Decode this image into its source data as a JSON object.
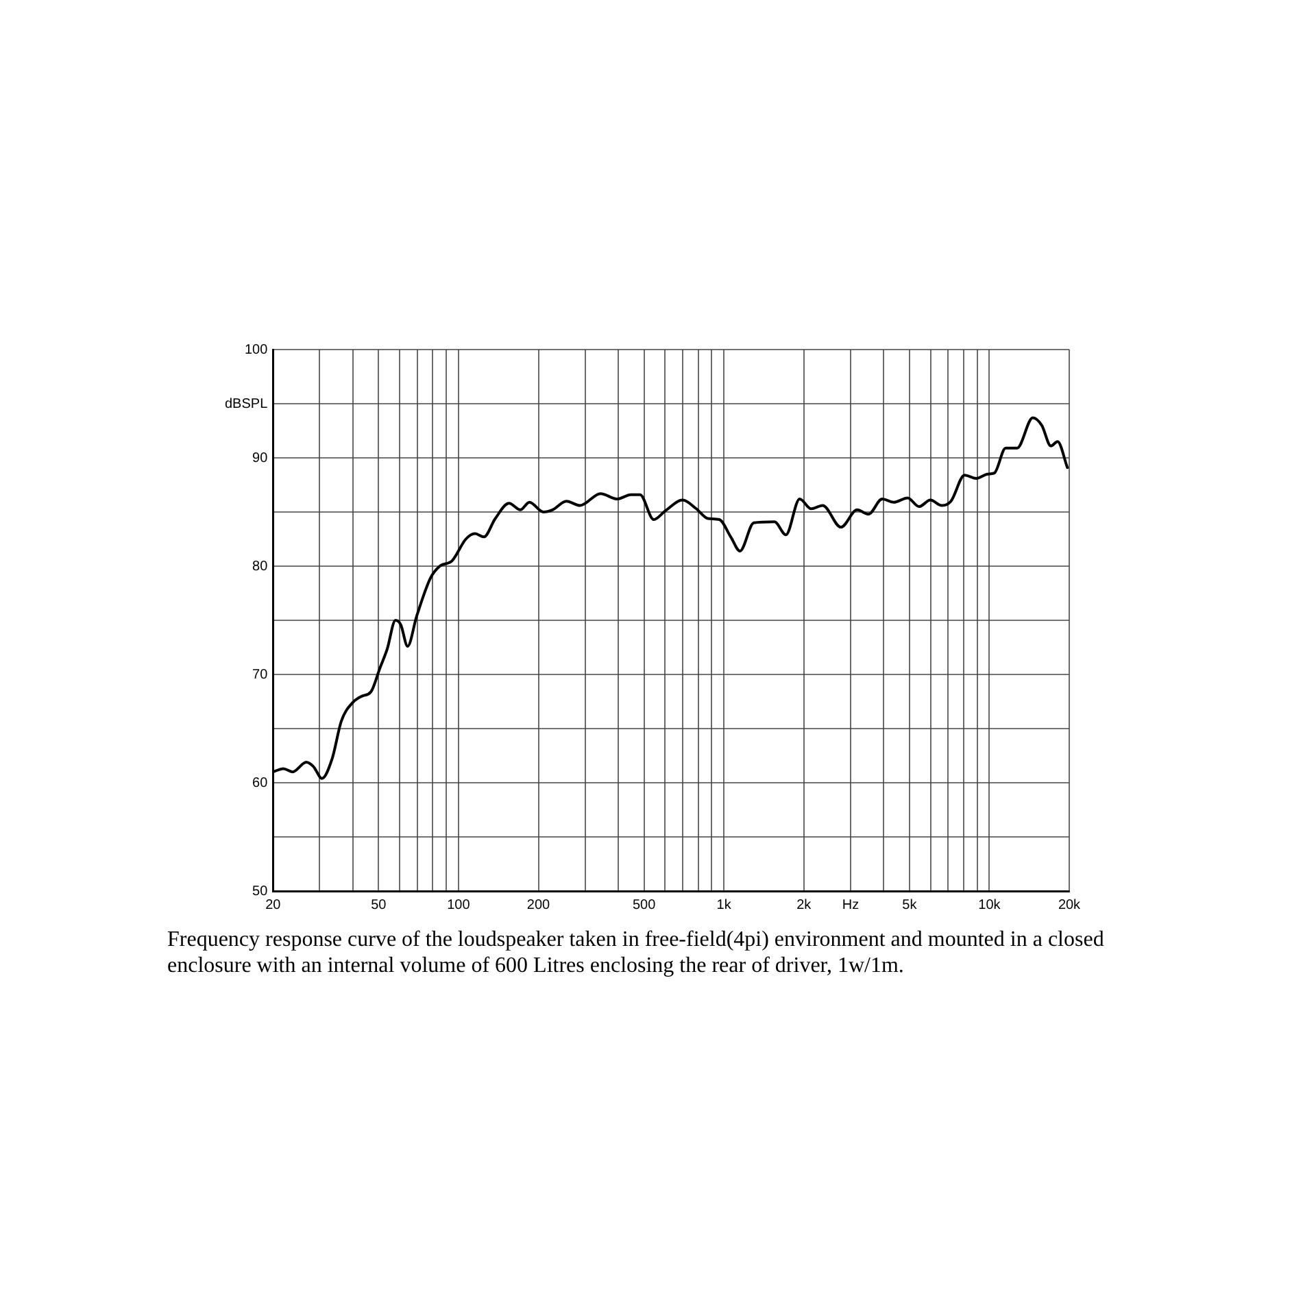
{
  "chart_data": {
    "type": "line",
    "log": "x",
    "grid": true,
    "legend": false,
    "marker": "none",
    "line_style": "solid",
    "xlim": [
      20,
      20000
    ],
    "ylim": [
      50,
      100
    ],
    "xticks": [
      20,
      {
        "value": 30,
        "label": null
      },
      {
        "value": 40,
        "label": null
      },
      50,
      {
        "value": 60,
        "label": null
      },
      {
        "value": 70,
        "label": null
      },
      {
        "value": 80,
        "label": null
      },
      {
        "value": 90,
        "label": null
      },
      100,
      200,
      {
        "value": 300,
        "label": null
      },
      {
        "value": 400,
        "label": null
      },
      500,
      {
        "value": 600,
        "label": null
      },
      {
        "value": 700,
        "label": null
      },
      {
        "value": 800,
        "label": null
      },
      {
        "value": 900,
        "label": null
      },
      {
        "value": 1000,
        "label": "1k"
      },
      {
        "value": 2000,
        "label": "2k"
      },
      {
        "value": 3000,
        "label": "Hz"
      },
      {
        "value": 4000,
        "label": null
      },
      {
        "value": 5000,
        "label": "5k"
      },
      {
        "value": 6000,
        "label": null
      },
      {
        "value": 7000,
        "label": null
      },
      {
        "value": 8000,
        "label": null
      },
      {
        "value": 9000,
        "label": null
      },
      {
        "value": 10000,
        "label": "10k"
      },
      {
        "value": 20000,
        "label": "20k"
      }
    ],
    "yticks": [
      50,
      {
        "value": 55,
        "label": null
      },
      60,
      {
        "value": 65,
        "label": null
      },
      70,
      {
        "value": 75,
        "label": null
      },
      80,
      {
        "value": 85,
        "label": null
      },
      90,
      {
        "value": 95,
        "label": "dBSPL"
      },
      100
    ],
    "annotations": [
      "Frequency response curve of the loudspeaker taken in free-field(4pi) environment and mounted in a closed enclosure  with an internal volume of 600 Litres enclosing the rear of driver, 1w/1m."
    ],
    "series": [
      {
        "color": "#000000",
        "x": [
          20,
          21.9,
          23.7,
          26.7,
          28.4,
          30.6,
          33.4,
          36.2,
          39.9,
          43.3,
          46.8,
          50.6,
          53.8,
          57.9,
          60.6,
          64.3,
          69.6,
          78.4,
          85,
          94.6,
          106.6,
          115.4,
          124.7,
          137.6,
          155,
          171,
          185,
          209,
          226,
          255,
          287,
          343,
          396,
          446,
          483,
          544,
          601,
          699,
          787,
          870,
          961,
          1061,
          1149,
          1296,
          1550,
          1712,
          1929,
          2132,
          2355,
          2760,
          3175,
          3503,
          3948,
          4364,
          4922,
          5434,
          5997,
          6623,
          7166,
          8068,
          8935,
          9852,
          10441,
          11523,
          12720,
          14582,
          15760,
          17050,
          18070,
          19680
        ],
        "values": [
          61,
          61.3,
          61,
          61.9,
          61.5,
          60.4,
          62.2,
          65.7,
          67.4,
          68,
          68.4,
          70.6,
          72.3,
          75,
          74.6,
          72.6,
          75.4,
          78.9,
          80,
          80.5,
          82.5,
          83,
          82.7,
          84.4,
          85.8,
          85.2,
          85.9,
          85,
          85.2,
          86,
          85.6,
          86.7,
          86.2,
          86.6,
          86.6,
          84.3,
          85.1,
          86.1,
          85.3,
          84.4,
          84.3,
          82.7,
          81.4,
          84,
          84.1,
          82.9,
          86.2,
          85.3,
          85.6,
          83.6,
          85.2,
          84.8,
          86.2,
          85.9,
          86.3,
          85.5,
          86.1,
          85.6,
          86,
          88.4,
          88.1,
          88.5,
          88.6,
          90.9,
          90.9,
          93.7,
          93,
          91.1,
          91.5,
          89.1
        ]
      }
    ]
  }
}
